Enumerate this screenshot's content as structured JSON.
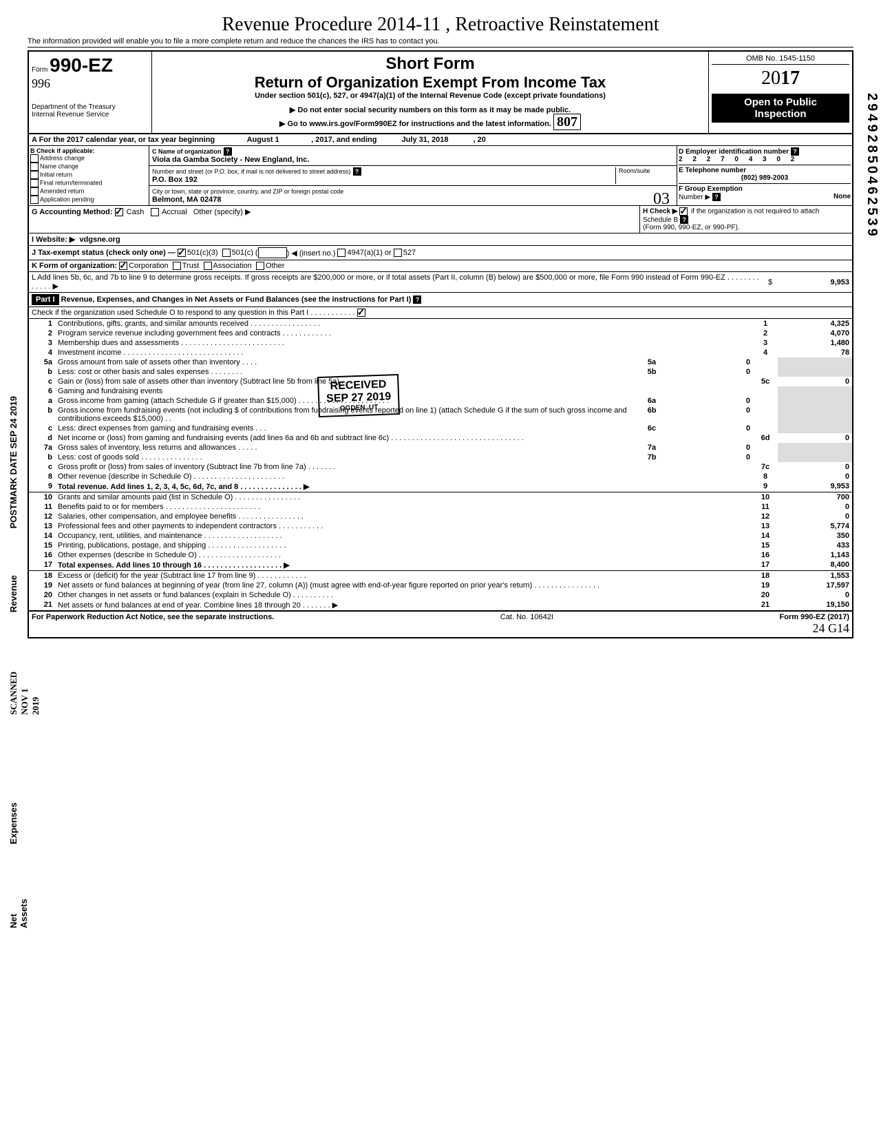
{
  "handwritten_top": "Revenue Procedure 2014-11 , Retroactive Reinstatement",
  "subnote": "The information provided will enable you to file a more complete return and reduce the chances the IRS has to contact you.",
  "header": {
    "form_label": "Form",
    "form_no": "990-EZ",
    "dept": "Department of the Treasury\nInternal Revenue Service",
    "short_form": "Short Form",
    "title": "Return of Organization Exempt From Income Tax",
    "under": "Under section 501(c), 527, or 4947(a)(1) of the Internal Revenue Code (except private foundations)",
    "note1": "▶ Do not enter social security numbers on this form as it may be made public.",
    "note2": "▶ Go to www.irs.gov/Form990EZ for instructions and the latest information.",
    "hand_807": "807",
    "omb": "OMB No. 1545-1150",
    "year_prefix": "20",
    "year_bold": "17",
    "open1": "Open to Public",
    "open2": "Inspection"
  },
  "lineA": {
    "text": "A  For the 2017 calendar year, or tax year beginning",
    "begin": "August 1",
    "mid": ", 2017, and ending",
    "end": "July 31, 2018",
    "tail": ", 20"
  },
  "colB": {
    "title": "B  Check if applicable:",
    "items": [
      "Address change",
      "Name change",
      "Initial return",
      "Final return/terminated",
      "Amended return",
      "Application pending"
    ]
  },
  "colC": {
    "c_label": "C  Name of organization",
    "org": "Viola da Gamba Society - New England, Inc.",
    "addr_label": "Number and street (or P.O. box, if mail is not delivered to street address)",
    "room": "Room/suite",
    "addr": "P.O. Box 192",
    "city_label": "City or town, state or province, country, and ZIP or foreign postal code",
    "city": "Belmont, MA 02478",
    "hand_03": "03"
  },
  "colD": {
    "d_label": "D Employer identification number",
    "ein": "2 2 2 7 0 4 3 0 2",
    "e_label": "E Telephone number",
    "phone": "(802) 989-2003",
    "f_label": "F Group Exemption",
    "f_num": "Number ▶",
    "f_val": "None"
  },
  "rowG": {
    "g": "G Accounting Method:",
    "cash": "Cash",
    "accrual": "Accrual",
    "other": "Other (specify) ▶",
    "h": "H Check ▶",
    "h2": "if the organization is not required to attach Schedule B",
    "h3": "(Form 990, 990-EZ, or 990-PF)."
  },
  "rowI": {
    "label": "I  Website: ▶",
    "val": "vdgsne.org"
  },
  "rowJ": {
    "label": "J  Tax-exempt status (check only one) —",
    "o1": "501(c)(3)",
    "o2": "501(c) (",
    "o3": ") ◀ (insert no.)",
    "o4": "4947(a)(1) or",
    "o5": "527"
  },
  "rowK": {
    "label": "K  Form of organization:",
    "o1": "Corporation",
    "o2": "Trust",
    "o3": "Association",
    "o4": "Other"
  },
  "rowL": {
    "text": "L  Add lines 5b, 6c, and 7b to line 9 to determine gross receipts. If gross receipts are $200,000 or more, or if total assets (Part II, column (B) below) are $500,000 or more, file Form 990 instead of Form 990-EZ .  .  .  .  .  .  .  .  .  .  .  .  .  ▶",
    "amt": "9,953"
  },
  "part1": {
    "hdr": "Part I",
    "title": "Revenue, Expenses, and Changes in Net Assets or Fund Balances (see the instructions for Part I)",
    "check": "Check if the organization used Schedule O to respond to any question in this Part I  .  .  .  .  .  .  .  .  .  .  ."
  },
  "stamp": {
    "l1": "RECEIVED",
    "l2": "SEP 27 2019",
    "l3": "OGDEN, UT"
  },
  "side_labels": {
    "revenue": "Revenue",
    "expenses": "Expenses",
    "net": "Net Assets",
    "scanned": "SCANNED NOV 1 2019",
    "postmark": "POSTMARK DATE SEP 24 2019",
    "right_num": "29492850462539"
  },
  "rows": [
    {
      "n": "1",
      "t": "Contributions, gifts, grants, and similar amounts received .  .  .  .  .  .  .  .  .  .  .  .  .  .  .  .  .",
      "box": "1",
      "v": "4,325"
    },
    {
      "n": "2",
      "t": "Program service revenue including government fees and contracts  .  .  .  .  .  .  .  .  .  .  .  .",
      "box": "2",
      "v": "4,070"
    },
    {
      "n": "3",
      "t": "Membership dues and assessments .  .  .  .  .  .  .  .  .  .  .  .  .  .  .  .  .  .  .  .  .  .  .  .  .",
      "box": "3",
      "v": "1,480"
    },
    {
      "n": "4",
      "t": "Investment income   .  .  .  .  .  .  .  .  .  .  .  .  .  .  .  .  .  .  .  .  .  .  .  .  .  .  .  .  .",
      "box": "4",
      "v": "78"
    },
    {
      "n": "5a",
      "t": "Gross amount from sale of assets other than inventory  .  .  .  .",
      "sub": "5a",
      "sv": "0"
    },
    {
      "n": "b",
      "t": "Less: cost or other basis and sales expenses .  .  .  .  .  .  .  .",
      "sub": "5b",
      "sv": "0"
    },
    {
      "n": "c",
      "t": "Gain or (loss) from sale of assets other than inventory (Subtract line 5b from line 5a)  .  .  .",
      "box": "5c",
      "v": "0"
    },
    {
      "n": "6",
      "t": "Gaming and fundraising events"
    },
    {
      "n": "a",
      "t": "Gross income from gaming (attach Schedule G if greater than $15,000) .  .  .  .  .  .  .  .  .  .  .  .  .  .  .  .  .  .  .  .  .  .",
      "sub": "6a",
      "sv": "0"
    },
    {
      "n": "b",
      "t": "Gross income from fundraising events (not including  $              of contributions from fundraising events reported on line 1) (attach Schedule G if the sum of such gross income and contributions exceeds $15,000) .  .",
      "sub": "6b",
      "sv": "0"
    },
    {
      "n": "c",
      "t": "Less: direct expenses from gaming and fundraising events   .  .  .",
      "sub": "6c",
      "sv": "0"
    },
    {
      "n": "d",
      "t": "Net income or (loss) from gaming and fundraising events (add lines 6a and 6b and subtract line 6c)   .  .  .  .  .  .  .  .  .  .  .  .  .  .  .  .  .  .  .  .  .  .  .  .  .  .  .  .  .  .  .  .",
      "box": "6d",
      "v": "0"
    },
    {
      "n": "7a",
      "t": "Gross sales of inventory, less returns and allowances .  .  .  .  .",
      "sub": "7a",
      "sv": "0"
    },
    {
      "n": "b",
      "t": "Less: cost of goods sold    .  .  .  .  .  .  .  .  .  .  .  .  .  .  .",
      "sub": "7b",
      "sv": "0"
    },
    {
      "n": "c",
      "t": "Gross profit or (loss) from sales of inventory (Subtract line 7b from line 7a)  .  .  .  .  .  .  .",
      "box": "7c",
      "v": "0"
    },
    {
      "n": "8",
      "t": "Other revenue (describe in Schedule O) .  .  .  .  .  .  .  .  .  .  .  .  .  .  .  .  .  .  .  .  .  .",
      "box": "8",
      "v": "0"
    },
    {
      "n": "9",
      "t": "Total revenue. Add lines 1, 2, 3, 4, 5c, 6d, 7c, and 8   .  .  .  .  .  .  .  .  .  .  .  .  .  .  .  ▶",
      "box": "9",
      "v": "9,953",
      "bold": true
    },
    {
      "n": "10",
      "t": "Grants and similar amounts paid (list in Schedule O)  .  .  .  .  .  .  .  .  .  .  .  .  .  .  .  .",
      "box": "10",
      "v": "700"
    },
    {
      "n": "11",
      "t": "Benefits paid to or for members   .  .  .  .  .  .  .  .  .  .  .  .  .  .  .  .  .  .  .  .  .  .  .",
      "box": "11",
      "v": "0"
    },
    {
      "n": "12",
      "t": "Salaries, other compensation, and employee benefits  .  .  .  .  .  .  .  .  .  .  .  .  .  .  .  .",
      "box": "12",
      "v": "0"
    },
    {
      "n": "13",
      "t": "Professional fees and other payments to independent contractors  .  .  .  .  .  .  .  .  .  .  .",
      "box": "13",
      "v": "5,774"
    },
    {
      "n": "14",
      "t": "Occupancy, rent, utilities, and maintenance   .  .  .  .  .  .  .  .  .  .  .  .  .  .  .  .  .  .  .",
      "box": "14",
      "v": "350"
    },
    {
      "n": "15",
      "t": "Printing, publications, postage, and shipping .  .  .  .  .  .  .  .  .  .  .  .  .  .  .  .  .  .  .",
      "box": "15",
      "v": "433"
    },
    {
      "n": "16",
      "t": "Other expenses (describe in Schedule O)  .  .  .  .  .  .  .  .  .  .  .  .  .  .  .  .  .  .  .  .",
      "box": "16",
      "v": "1,143"
    },
    {
      "n": "17",
      "t": "Total expenses. Add lines 10 through 16  .  .  .  .  .  .  .  .  .  .  .  .  .  .  .  .  .  .  .  ▶",
      "box": "17",
      "v": "8,400",
      "bold": true
    },
    {
      "n": "18",
      "t": "Excess or (deficit) for the year (Subtract line 17 from line 9)   .  .  .  .  .  .  .  .  .  .  .  .",
      "box": "18",
      "v": "1,553"
    },
    {
      "n": "19",
      "t": "Net assets or fund balances at beginning of year (from line 27, column (A)) (must agree with end-of-year figure reported on prior year's return)    .  .  .  .  .  .  .  .  .  .  .  .  .  .  .  .",
      "box": "19",
      "v": "17,597"
    },
    {
      "n": "20",
      "t": "Other changes in net assets or fund balances (explain in Schedule O) .  .  .  .  .  .  .  .  .  .",
      "box": "20",
      "v": "0"
    },
    {
      "n": "21",
      "t": "Net assets or fund balances at end of year. Combine lines 18 through 20   .  .  .  .  .  .  .  ▶",
      "box": "21",
      "v": "19,150"
    }
  ],
  "footer": {
    "left": "For Paperwork Reduction Act Notice, see the separate instructions.",
    "mid": "Cat. No. 10642I",
    "right": "Form 990-EZ (2017)",
    "hand": "24  G14"
  }
}
